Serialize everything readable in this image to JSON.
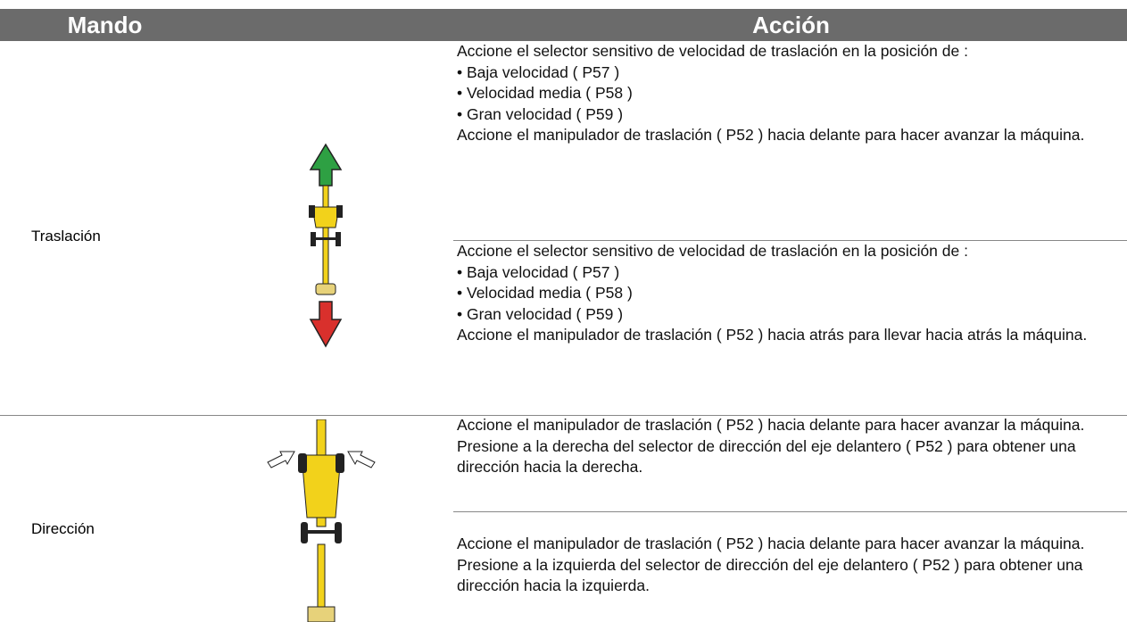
{
  "header": {
    "columns": [
      "Mando",
      "Acción"
    ]
  },
  "rows": [
    {
      "label": "Traslación",
      "actions": [
        {
          "items": [
            "Accione el selector sensitivo de velocidad de traslación en la posición de :",
            "• Baja velocidad ( P57 )",
            "• Velocidad media ( P58 )",
            "• Gran velocidad ( P59 )",
            "Accione el manipulador de traslación ( P52 ) hacia delante para hacer avanzar la máquina."
          ]
        },
        {
          "items": [
            "Accione el selector sensitivo de velocidad de traslación en la posición de :",
            "• Baja velocidad ( P57 )",
            "• Velocidad media ( P58 )",
            "• Gran velocidad ( P59 )",
            "Accione el manipulador de traslación ( P52 ) hacia atrás para llevar hacia atrás la máquina."
          ]
        }
      ]
    },
    {
      "label": "Dirección",
      "actions": [
        {
          "items": [
            "Accione el manipulador de traslación ( P52 ) hacia delante para hacer avanzar la máquina. Presione a la derecha del selector de dirección del eje delantero ( P52 ) para obtener una dirección hacia la derecha."
          ]
        },
        {
          "items": [
            "Accione el manipulador de traslación ( P52 ) hacia delante para hacer avanzar la máquina. Presione a la izquierda del selector de dirección del eje delantero ( P52 ) para obtener una dirección hacia la izquierda."
          ]
        }
      ]
    }
  ]
}
